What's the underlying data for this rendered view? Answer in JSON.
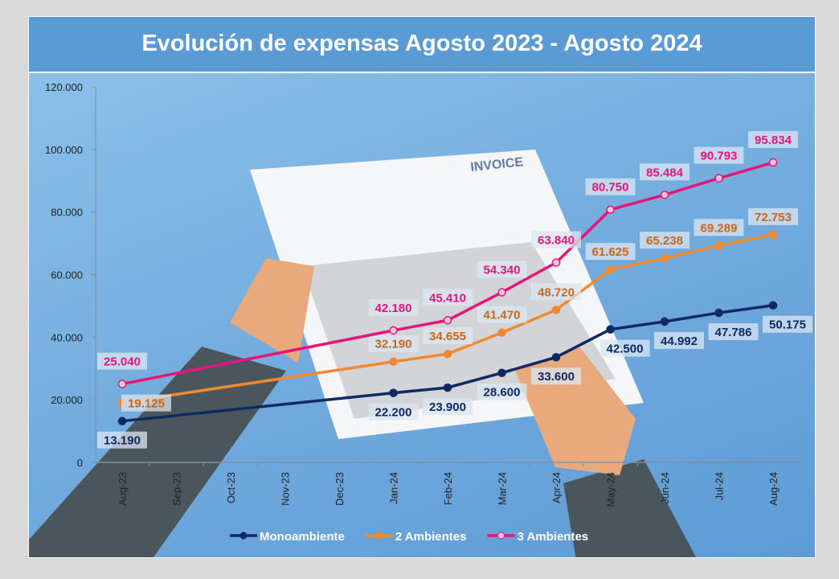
{
  "chart_data": {
    "type": "line",
    "title": "Evolución de expensas Agosto 2023 - Agosto 2024",
    "categories": [
      "Aug-23",
      "Sep-23",
      "Oct-23",
      "Nov-23",
      "Dec-23",
      "Jan-24",
      "Feb-24",
      "Mar-24",
      "Apr-24",
      "May-24",
      "Jun-24",
      "Jul-24",
      "Aug-24"
    ],
    "ylim": [
      0,
      120000
    ],
    "yticks": [
      0,
      20000,
      40000,
      60000,
      80000,
      100000,
      120000
    ],
    "ytick_labels": [
      "0",
      "20.000",
      "40.000",
      "60.000",
      "80.000",
      "100.000",
      "120.000"
    ],
    "grid": false,
    "legend": "bottom",
    "series": [
      {
        "name": "Monoambiente",
        "color": "#0f2a63",
        "values": [
          13190,
          null,
          null,
          null,
          null,
          22200,
          23900,
          28600,
          33600,
          42500,
          44992,
          47786,
          50175
        ],
        "labels": [
          "13.190",
          null,
          null,
          null,
          null,
          "22.200",
          "23.900",
          "28.600",
          "33.600",
          "42.500",
          "44.992",
          "47.786",
          "50.175"
        ]
      },
      {
        "name": "2 Ambientes",
        "color": "#f08a32",
        "label_color": "#c8661a",
        "values": [
          19125,
          null,
          null,
          null,
          null,
          32190,
          34655,
          41470,
          48720,
          61625,
          65238,
          69289,
          72753
        ],
        "labels": [
          "19.125",
          null,
          null,
          null,
          null,
          "32.190",
          "34.655",
          "41.470",
          "48.720",
          "61.625",
          "65.238",
          "69.289",
          "72.753"
        ]
      },
      {
        "name": "3 Ambientes",
        "color": "#e5157a",
        "values": [
          25040,
          null,
          null,
          null,
          null,
          42180,
          45410,
          54340,
          63840,
          80750,
          85484,
          90793,
          95834
        ],
        "labels": [
          "25.040",
          null,
          null,
          null,
          null,
          "42.180",
          "45.410",
          "54.340",
          "63.840",
          "80.750",
          "85.484",
          "90.793",
          "95.834"
        ]
      }
    ]
  },
  "illustration": {
    "paper_heading": "INVOICE"
  }
}
